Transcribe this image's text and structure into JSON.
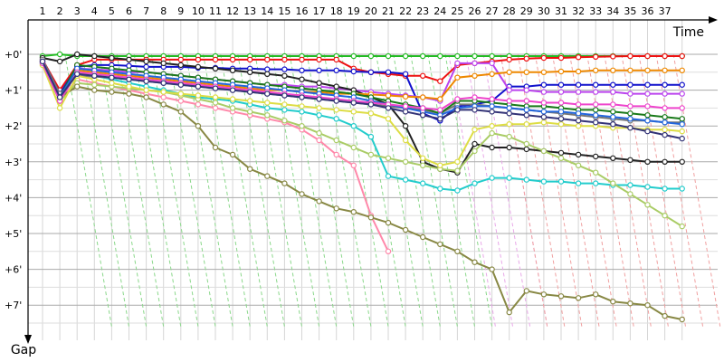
{
  "chart_data": {
    "type": "line",
    "title": "",
    "xlabel": "Time",
    "ylabel": "Gap",
    "x_ticks": [
      "1",
      "2",
      "3",
      "4",
      "5",
      "6",
      "7",
      "8",
      "9",
      "10",
      "11",
      "12",
      "13",
      "14",
      "15",
      "16",
      "17",
      "18",
      "19",
      "20",
      "21",
      "22",
      "23",
      "24",
      "25",
      "26",
      "27",
      "28",
      "29",
      "30",
      "31",
      "32",
      "33",
      "34",
      "35",
      "36",
      "37"
    ],
    "y_ticks": [
      "+0'",
      "+1'",
      "+2'",
      "+3'",
      "+4'",
      "+5'",
      "+6'",
      "+7'"
    ],
    "xlim": [
      1,
      38.3
    ],
    "ylim": [
      -0.3,
      7.75
    ],
    "grid": true,
    "legend": "none",
    "guide_lines": [
      {
        "color": "#8bd88b",
        "x_from": 2.3,
        "x_to": 24.5
      },
      {
        "color": "#e8a8e8",
        "x_from": 24.5,
        "x_to": 27.5
      },
      {
        "color": "#f0a0a0",
        "x_from": 27.5,
        "x_to": 38.3
      }
    ],
    "series": [
      {
        "color": "#22bb22",
        "values": [
          0.05,
          0.0,
          0.05,
          0.05,
          0.05,
          0.05,
          0.05,
          0.05,
          0.05,
          0.05,
          0.05,
          0.05,
          0.05,
          0.05,
          0.05,
          0.05,
          0.05,
          0.05,
          0.05,
          0.05,
          0.05,
          0.05,
          0.05,
          0.05,
          0.05,
          0.05,
          0.05,
          0.05,
          0.05,
          0.05,
          0.05,
          0.05,
          0.05,
          0.05,
          0.05,
          0.05,
          0.05,
          0.05
        ]
      },
      {
        "color": "#ee1111",
        "values": [
          0.15,
          1.0,
          0.3,
          0.15,
          0.15,
          0.15,
          0.15,
          0.15,
          0.15,
          0.15,
          0.15,
          0.15,
          0.15,
          0.15,
          0.15,
          0.15,
          0.15,
          0.15,
          0.4,
          0.5,
          0.55,
          0.6,
          0.6,
          0.75,
          0.3,
          0.25,
          0.2,
          0.15,
          0.12,
          0.1,
          0.1,
          0.08,
          0.07,
          0.06,
          0.05,
          0.05,
          0.05,
          0.05
        ]
      },
      {
        "color": "#1111cc",
        "values": [
          0.15,
          1.1,
          0.35,
          0.3,
          0.3,
          0.32,
          0.35,
          0.35,
          0.35,
          0.38,
          0.38,
          0.4,
          0.4,
          0.42,
          0.42,
          0.45,
          0.45,
          0.45,
          0.48,
          0.5,
          0.5,
          0.55,
          1.65,
          1.85,
          1.45,
          1.4,
          1.3,
          0.9,
          0.9,
          0.85,
          0.85,
          0.85,
          0.85,
          0.85,
          0.85,
          0.85,
          0.85,
          0.85
        ]
      },
      {
        "color": "#bb44ee",
        "values": [
          0.2,
          1.2,
          0.4,
          0.42,
          0.45,
          0.5,
          0.5,
          0.55,
          0.6,
          0.65,
          0.7,
          0.75,
          0.8,
          0.85,
          0.85,
          0.9,
          0.9,
          0.95,
          1.0,
          1.05,
          1.1,
          1.15,
          1.2,
          1.3,
          0.25,
          0.25,
          0.25,
          1.0,
          1.0,
          1.05,
          1.05,
          1.05,
          1.05,
          1.05,
          1.1,
          1.1,
          1.1,
          1.1
        ]
      },
      {
        "color": "#222222",
        "values": [
          0.1,
          0.2,
          0.0,
          0.05,
          0.1,
          0.15,
          0.2,
          0.25,
          0.3,
          0.35,
          0.4,
          0.45,
          0.5,
          0.55,
          0.6,
          0.7,
          0.8,
          0.9,
          1.0,
          1.2,
          1.4,
          2.0,
          3.0,
          3.2,
          3.3,
          2.5,
          2.6,
          2.6,
          2.65,
          2.7,
          2.75,
          2.8,
          2.85,
          2.9,
          2.95,
          3.0,
          3.0,
          3.0
        ]
      },
      {
        "color": "#ee8800",
        "values": [
          0.2,
          1.2,
          0.45,
          0.5,
          0.55,
          0.6,
          0.65,
          0.7,
          0.75,
          0.8,
          0.85,
          0.9,
          0.95,
          1.0,
          1.0,
          1.05,
          1.05,
          1.1,
          1.1,
          1.12,
          1.15,
          1.18,
          1.2,
          1.25,
          0.65,
          0.6,
          0.55,
          0.5,
          0.5,
          0.5,
          0.48,
          0.48,
          0.45,
          0.45,
          0.45,
          0.45,
          0.45,
          0.45
        ]
      },
      {
        "color": "#22cccc",
        "values": [
          0.25,
          1.3,
          0.5,
          0.6,
          0.7,
          0.8,
          0.9,
          1.0,
          1.1,
          1.2,
          1.25,
          1.3,
          1.4,
          1.5,
          1.55,
          1.6,
          1.7,
          1.8,
          2.0,
          2.3,
          3.4,
          3.5,
          3.6,
          3.75,
          3.8,
          3.6,
          3.45,
          3.45,
          3.5,
          3.55,
          3.55,
          3.6,
          3.6,
          3.65,
          3.65,
          3.7,
          3.75,
          3.75
        ]
      },
      {
        "color": "#777777",
        "values": [
          0.15,
          1.1,
          0.6,
          0.62,
          0.65,
          0.7,
          0.75,
          0.8,
          0.85,
          0.9,
          0.95,
          1.0,
          1.05,
          1.1,
          1.15,
          1.2,
          1.25,
          1.3,
          1.35,
          1.4,
          1.45,
          1.5,
          1.55,
          1.65,
          1.4,
          1.4,
          1.45,
          1.5,
          1.55,
          1.6,
          1.65,
          1.7,
          1.75,
          1.8,
          1.85,
          1.85,
          1.9,
          1.9
        ]
      },
      {
        "color": "#1a7a1a",
        "values": [
          0.25,
          1.2,
          0.3,
          0.35,
          0.4,
          0.45,
          0.5,
          0.55,
          0.6,
          0.65,
          0.7,
          0.75,
          0.8,
          0.85,
          0.9,
          0.95,
          1.0,
          1.05,
          1.1,
          1.2,
          1.3,
          1.4,
          1.5,
          1.65,
          1.3,
          1.3,
          1.35,
          1.4,
          1.45,
          1.45,
          1.5,
          1.55,
          1.55,
          1.6,
          1.65,
          1.7,
          1.75,
          1.8
        ]
      },
      {
        "color": "#ff88aa",
        "values": [
          0.2,
          1.3,
          0.7,
          0.8,
          0.9,
          1.0,
          1.1,
          1.2,
          1.3,
          1.4,
          1.5,
          1.6,
          1.7,
          1.8,
          1.9,
          2.1,
          2.4,
          2.8,
          3.1,
          4.5,
          5.5
        ]
      },
      {
        "color": "#aacc66",
        "values": [
          0.3,
          1.3,
          0.8,
          0.85,
          0.9,
          0.95,
          1.0,
          1.05,
          1.15,
          1.25,
          1.35,
          1.5,
          1.6,
          1.7,
          1.85,
          2.0,
          2.2,
          2.4,
          2.6,
          2.8,
          2.9,
          3.0,
          3.1,
          3.2,
          3.25,
          2.7,
          2.2,
          2.3,
          2.5,
          2.7,
          2.9,
          3.1,
          3.3,
          3.6,
          3.9,
          4.2,
          4.5,
          4.8
        ]
      },
      {
        "color": "#888844",
        "values": [
          0.2,
          1.2,
          0.9,
          1.0,
          1.05,
          1.1,
          1.2,
          1.4,
          1.6,
          2.0,
          2.6,
          2.8,
          3.2,
          3.4,
          3.6,
          3.9,
          4.1,
          4.3,
          4.4,
          4.55,
          4.7,
          4.9,
          5.1,
          5.3,
          5.5,
          5.8,
          6.0,
          7.2,
          6.6,
          6.7,
          6.75,
          6.8,
          6.7,
          6.9,
          6.95,
          7.0,
          7.3,
          7.4
        ]
      },
      {
        "color": "#dddd44",
        "values": [
          0.3,
          1.5,
          0.6,
          0.7,
          0.8,
          0.9,
          1.0,
          1.05,
          1.1,
          1.15,
          1.2,
          1.25,
          1.3,
          1.35,
          1.4,
          1.45,
          1.5,
          1.55,
          1.6,
          1.65,
          1.8,
          2.4,
          2.9,
          3.1,
          3.0,
          2.1,
          2.0,
          1.95,
          1.95,
          1.9,
          1.95,
          2.0,
          2.0,
          2.05,
          2.05,
          2.1,
          2.1,
          2.15
        ]
      },
      {
        "color": "#2266dd",
        "values": [
          0.2,
          1.2,
          0.4,
          0.45,
          0.5,
          0.55,
          0.6,
          0.65,
          0.7,
          0.75,
          0.8,
          0.85,
          0.9,
          0.95,
          1.0,
          1.05,
          1.1,
          1.15,
          1.2,
          1.3,
          1.4,
          1.5,
          1.6,
          1.7,
          1.5,
          1.45,
          1.45,
          1.5,
          1.55,
          1.6,
          1.6,
          1.65,
          1.7,
          1.75,
          1.8,
          1.85,
          1.9,
          1.95
        ]
      },
      {
        "color": "#ee44cc",
        "values": [
          0.25,
          1.3,
          0.5,
          0.55,
          0.6,
          0.65,
          0.7,
          0.75,
          0.8,
          0.85,
          0.9,
          0.95,
          1.0,
          1.05,
          1.1,
          1.15,
          1.2,
          1.25,
          1.3,
          1.35,
          1.4,
          1.45,
          1.5,
          1.55,
          1.25,
          1.2,
          1.25,
          1.3,
          1.3,
          1.35,
          1.35,
          1.4,
          1.4,
          1.4,
          1.45,
          1.45,
          1.5,
          1.5
        ]
      },
      {
        "color": "#333377",
        "values": [
          0.2,
          1.2,
          0.55,
          0.6,
          0.65,
          0.7,
          0.75,
          0.8,
          0.85,
          0.9,
          0.95,
          1.0,
          1.05,
          1.1,
          1.15,
          1.2,
          1.25,
          1.3,
          1.35,
          1.4,
          1.5,
          1.6,
          1.7,
          1.8,
          1.55,
          1.55,
          1.6,
          1.65,
          1.7,
          1.75,
          1.8,
          1.85,
          1.9,
          1.95,
          2.05,
          2.15,
          2.25,
          2.35
        ]
      }
    ]
  }
}
